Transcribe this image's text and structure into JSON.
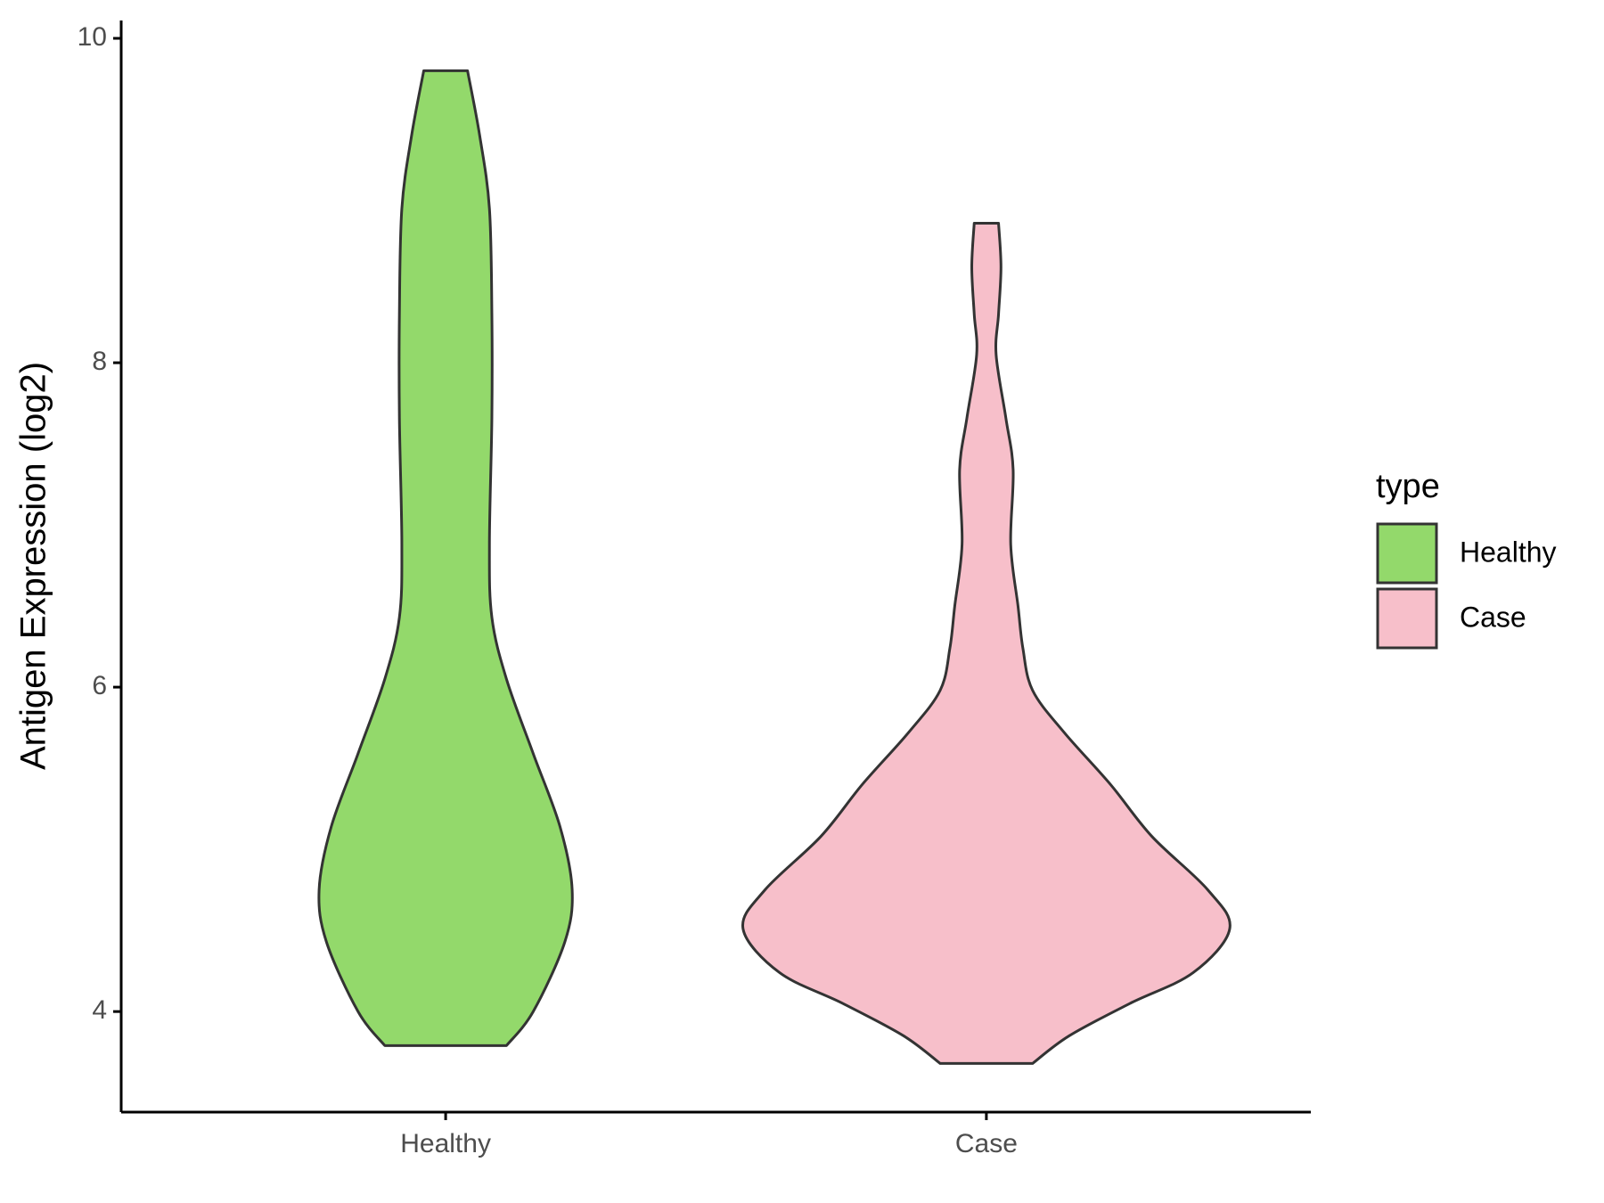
{
  "chart_data": {
    "type": "violin",
    "y_label": "Antigen Expression (log2)",
    "categories": [
      "Healthy",
      "Case"
    ],
    "legend_title": "type",
    "legend_position": "right",
    "series": [
      {
        "name": "Healthy",
        "color": "#93d96b",
        "values": [
          3.79,
          4.0,
          4.43,
          4.75,
          5.14,
          5.59,
          6.05,
          6.43,
          6.88,
          7.66,
          8.3,
          8.95,
          9.4,
          9.8
        ],
        "density": [
          0.25,
          0.36,
          0.49,
          0.52,
          0.47,
          0.36,
          0.25,
          0.19,
          0.18,
          0.19,
          0.19,
          0.18,
          0.14,
          0.09
        ]
      },
      {
        "name": "Case",
        "color": "#f7bfca",
        "values": [
          3.68,
          3.85,
          4.05,
          4.24,
          4.51,
          4.75,
          5.08,
          5.4,
          5.72,
          5.98,
          6.24,
          6.5,
          6.88,
          7.34,
          7.66,
          8.05,
          8.3,
          8.59,
          8.86
        ],
        "density": [
          0.19,
          0.34,
          0.59,
          0.85,
          1.0,
          0.91,
          0.68,
          0.51,
          0.32,
          0.19,
          0.15,
          0.13,
          0.1,
          0.11,
          0.08,
          0.04,
          0.05,
          0.06,
          0.05
        ]
      }
    ],
    "ylim": [
      3.38,
      10.11
    ],
    "yticks": [
      4,
      6,
      8,
      10
    ],
    "grid": false
  }
}
